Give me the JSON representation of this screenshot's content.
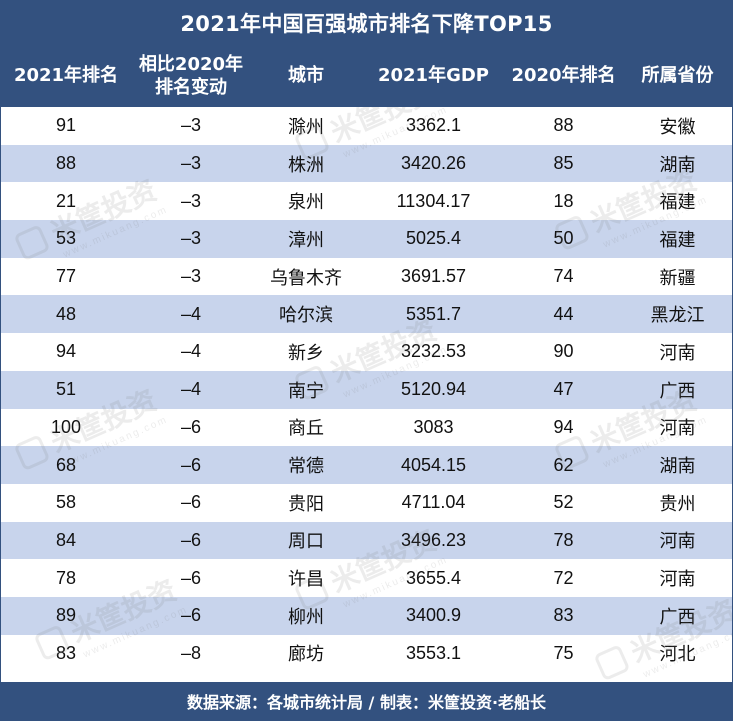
{
  "title": "2021年中国百强城市排名下降TOP15",
  "headers": {
    "rank_2021": "2021年排名",
    "change_line1": "相比2020年",
    "change_line2": "排名变动",
    "city": "城市",
    "gdp_2021": "2021年GDP",
    "rank_2020": "2020年排名",
    "province": "所属省份"
  },
  "rows": [
    {
      "rank_2021": "91",
      "change": "–3",
      "city": "滁州",
      "gdp_2021": "3362.1",
      "rank_2020": "88",
      "province": "安徽"
    },
    {
      "rank_2021": "88",
      "change": "–3",
      "city": "株洲",
      "gdp_2021": "3420.26",
      "rank_2020": "85",
      "province": "湖南"
    },
    {
      "rank_2021": "21",
      "change": "–3",
      "city": "泉州",
      "gdp_2021": "11304.17",
      "rank_2020": "18",
      "province": "福建"
    },
    {
      "rank_2021": "53",
      "change": "–3",
      "city": "漳州",
      "gdp_2021": "5025.4",
      "rank_2020": "50",
      "province": "福建"
    },
    {
      "rank_2021": "77",
      "change": "–3",
      "city": "乌鲁木齐",
      "gdp_2021": "3691.57",
      "rank_2020": "74",
      "province": "新疆"
    },
    {
      "rank_2021": "48",
      "change": "–4",
      "city": "哈尔滨",
      "gdp_2021": "5351.7",
      "rank_2020": "44",
      "province": "黑龙江"
    },
    {
      "rank_2021": "94",
      "change": "–4",
      "city": "新乡",
      "gdp_2021": "3232.53",
      "rank_2020": "90",
      "province": "河南"
    },
    {
      "rank_2021": "51",
      "change": "–4",
      "city": "南宁",
      "gdp_2021": "5120.94",
      "rank_2020": "47",
      "province": "广西"
    },
    {
      "rank_2021": "100",
      "change": "–6",
      "city": "商丘",
      "gdp_2021": "3083",
      "rank_2020": "94",
      "province": "河南"
    },
    {
      "rank_2021": "68",
      "change": "–6",
      "city": "常德",
      "gdp_2021": "4054.15",
      "rank_2020": "62",
      "province": "湖南"
    },
    {
      "rank_2021": "58",
      "change": "–6",
      "city": "贵阳",
      "gdp_2021": "4711.04",
      "rank_2020": "52",
      "province": "贵州"
    },
    {
      "rank_2021": "84",
      "change": "–6",
      "city": "周口",
      "gdp_2021": "3496.23",
      "rank_2020": "78",
      "province": "河南"
    },
    {
      "rank_2021": "78",
      "change": "–6",
      "city": "许昌",
      "gdp_2021": "3655.4",
      "rank_2020": "72",
      "province": "河南"
    },
    {
      "rank_2021": "89",
      "change": "–6",
      "city": "柳州",
      "gdp_2021": "3400.9",
      "rank_2020": "83",
      "province": "广西"
    },
    {
      "rank_2021": "83",
      "change": "–8",
      "city": "廊坊",
      "gdp_2021": "3553.1",
      "rank_2020": "75",
      "province": "河北"
    }
  ],
  "footer": "数据来源：各城市统计局 / 制表：米筐投资·老船长",
  "watermark": {
    "text": "米筐投资",
    "sub": "www.mikuang.com"
  },
  "colors": {
    "header_bg": "#33517f",
    "stripe": "#c8d4ec",
    "text": "#111111"
  }
}
